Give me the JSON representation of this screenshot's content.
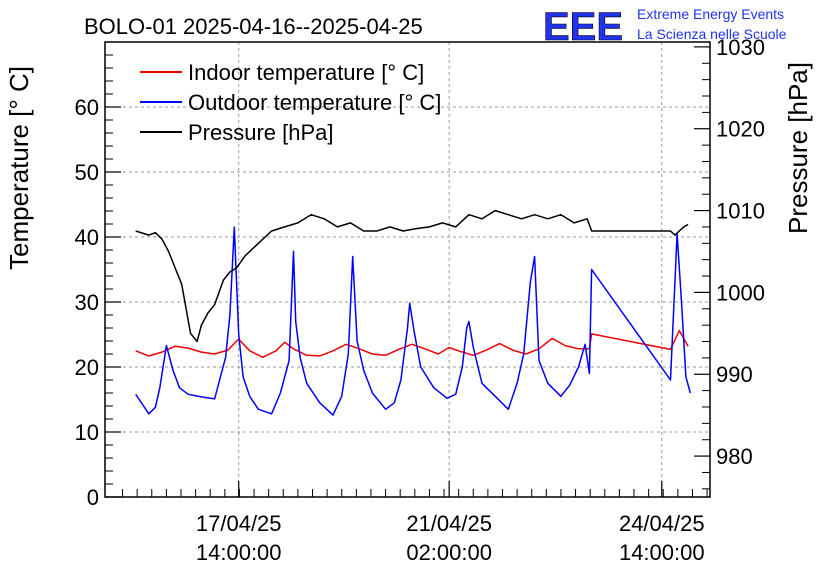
{
  "chart_data": {
    "type": "line",
    "title": "BOLO-01 2025-04-16--2025-04-25",
    "logo": {
      "mark": "EEE",
      "line1": "Extreme Energy Events",
      "line2": "La Scienza nelle Scuole"
    },
    "ylabel": "Temperature [° C]",
    "y2label": "Pressure [hPa]",
    "ylim": [
      0,
      70
    ],
    "y2lim": [
      975,
      1030.6
    ],
    "xlim": [
      0,
      13.8
    ],
    "grid": true,
    "legend_position": "top-left",
    "y_ticks": [
      "0",
      "10",
      "20",
      "30",
      "40",
      "50",
      "60"
    ],
    "y2_ticks": [
      "980",
      "990",
      "1000",
      "1010",
      "1020",
      "1030"
    ],
    "x_ticks": [
      {
        "line1": "17/04/25",
        "line2": "14:00:00",
        "x": 3.05
      },
      {
        "line1": "21/04/25",
        "line2": "02:00:00",
        "x": 7.85
      },
      {
        "line1": "24/04/25",
        "line2": "14:00:00",
        "x": 12.7
      }
    ],
    "colors": {
      "indoor": "#ee0000",
      "outdoor": "#0000ff",
      "pressure": "#000000",
      "logo": "#2233ee"
    },
    "series": [
      {
        "name": "Indoor temperature [° C]",
        "axis": "left",
        "color": "#ee0000",
        "x": [
          0.7,
          1.0,
          1.3,
          1.6,
          1.9,
          2.2,
          2.5,
          2.8,
          3.05,
          3.3,
          3.6,
          3.9,
          4.1,
          4.3,
          4.6,
          4.9,
          5.2,
          5.5,
          5.8,
          6.1,
          6.4,
          6.7,
          7.0,
          7.3,
          7.6,
          7.85,
          8.1,
          8.4,
          8.7,
          9.0,
          9.3,
          9.6,
          9.9,
          10.2,
          10.5,
          10.8,
          11.05,
          11.1,
          12.9,
          13.1,
          13.3
        ],
        "y": [
          22.5,
          21.7,
          22.3,
          23.2,
          22.9,
          22.3,
          22.0,
          22.6,
          24.3,
          22.5,
          21.5,
          22.5,
          23.8,
          22.8,
          21.8,
          21.7,
          22.5,
          23.5,
          22.8,
          22.0,
          21.8,
          22.7,
          23.5,
          22.8,
          22.0,
          23.0,
          22.4,
          21.8,
          22.6,
          23.6,
          22.6,
          22.0,
          22.8,
          24.4,
          23.3,
          22.8,
          22.8,
          25.1,
          22.7,
          25.6,
          23.2
        ]
      },
      {
        "name": "Outdoor temperature [° C]",
        "axis": "left",
        "color": "#0000ff",
        "x": [
          0.7,
          0.85,
          1.0,
          1.15,
          1.25,
          1.4,
          1.55,
          1.7,
          1.9,
          2.2,
          2.5,
          2.75,
          2.85,
          2.95,
          3.05,
          3.15,
          3.3,
          3.5,
          3.8,
          4.0,
          4.2,
          4.3,
          4.35,
          4.45,
          4.6,
          4.9,
          5.2,
          5.4,
          5.55,
          5.65,
          5.75,
          5.9,
          6.1,
          6.4,
          6.6,
          6.75,
          6.9,
          6.95,
          7.05,
          7.2,
          7.5,
          7.8,
          8.0,
          8.15,
          8.25,
          8.3,
          8.4,
          8.6,
          8.9,
          9.2,
          9.4,
          9.55,
          9.7,
          9.8,
          9.9,
          10.1,
          10.4,
          10.6,
          10.8,
          10.95,
          11.05,
          11.1,
          12.9,
          13.05,
          13.15,
          13.25,
          13.35
        ],
        "y": [
          15.8,
          14.3,
          12.8,
          13.8,
          16.8,
          23.3,
          19.5,
          16.8,
          15.8,
          15.4,
          15.1,
          21.5,
          28.0,
          41.5,
          25.0,
          18.5,
          15.5,
          13.5,
          12.8,
          16.0,
          21.0,
          37.8,
          27.0,
          21.5,
          17.5,
          14.5,
          12.6,
          15.5,
          22.0,
          37.0,
          24.0,
          19.5,
          16.0,
          13.5,
          14.5,
          18.0,
          26.0,
          29.8,
          25.5,
          20.0,
          16.8,
          15.2,
          15.8,
          20.0,
          26.0,
          27.0,
          23.0,
          17.5,
          15.5,
          13.5,
          17.5,
          22.0,
          33.0,
          37.0,
          21.0,
          17.5,
          15.5,
          17.2,
          20.0,
          23.5,
          19.0,
          35.0,
          18.0,
          40.5,
          30.0,
          18.5,
          16.0
        ]
      },
      {
        "name": "Pressure [hPa]",
        "axis": "right",
        "color": "#000000",
        "x": [
          0.7,
          1.0,
          1.15,
          1.3,
          1.45,
          1.6,
          1.75,
          1.85,
          1.95,
          2.1,
          2.2,
          2.35,
          2.5,
          2.6,
          2.7,
          2.85,
          3.0,
          3.2,
          3.5,
          3.8,
          4.1,
          4.4,
          4.7,
          5.0,
          5.3,
          5.6,
          5.9,
          6.2,
          6.5,
          6.8,
          7.1,
          7.4,
          7.7,
          8.0,
          8.3,
          8.6,
          8.9,
          9.2,
          9.5,
          9.8,
          10.1,
          10.4,
          10.7,
          11.0,
          11.1,
          12.9,
          13.0,
          13.1,
          13.2,
          13.3
        ],
        "y": [
          1007.5,
          1007.0,
          1007.3,
          1006.5,
          1005.0,
          1003.0,
          1001.0,
          998.0,
          995.0,
          994.0,
          996.0,
          997.5,
          998.5,
          1000.0,
          1001.5,
          1002.5,
          1003.0,
          1004.5,
          1006.0,
          1007.5,
          1008.0,
          1008.5,
          1009.5,
          1009.0,
          1008.0,
          1008.5,
          1007.5,
          1007.5,
          1008.0,
          1007.5,
          1007.8,
          1008.0,
          1008.5,
          1008.0,
          1009.5,
          1009.0,
          1010.0,
          1009.5,
          1009.0,
          1009.5,
          1009.0,
          1009.5,
          1008.5,
          1009.0,
          1007.5,
          1007.5,
          1007.0,
          1007.5,
          1008.0,
          1008.3
        ]
      }
    ]
  }
}
